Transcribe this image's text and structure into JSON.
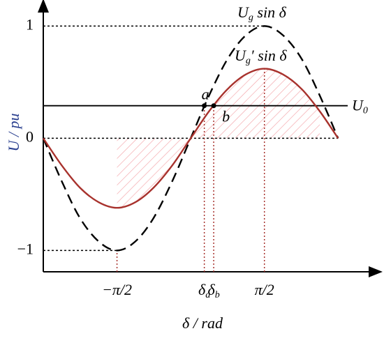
{
  "chart_data": {
    "type": "line",
    "x_label": "δ / rad",
    "y_label": "U / pu",
    "x": [
      -3.14,
      -2.75,
      -2.36,
      -1.96,
      -1.57,
      -1.18,
      -0.79,
      -0.39,
      0,
      0.39,
      0.79,
      1.18,
      1.57,
      1.96,
      2.36,
      2.75,
      3.14
    ],
    "series": [
      {
        "name": "Ug sin δ",
        "color": "#000000",
        "dashed": true,
        "values": [
          0,
          -0.38,
          -0.71,
          -0.92,
          -1,
          -0.92,
          -0.71,
          -0.38,
          0,
          0.38,
          0.71,
          0.92,
          1,
          0.92,
          0.71,
          0.38,
          0
        ]
      },
      {
        "name": "Ug′ sin δ",
        "color": "#a8322d",
        "dashed": false,
        "values": [
          0,
          -0.24,
          -0.44,
          -0.57,
          -0.62,
          -0.57,
          -0.44,
          -0.24,
          0,
          0.24,
          0.44,
          0.57,
          0.62,
          0.57,
          0.44,
          0.24,
          0
        ]
      }
    ],
    "hline": {
      "name": "U0",
      "value": 0.29
    },
    "points": [
      {
        "label": "a",
        "x": 0.29,
        "y": 0.29
      },
      {
        "label": "b",
        "x": 0.49,
        "y": 0.29
      }
    ],
    "xlim": [
      -3.14,
      3.82
    ],
    "ylim": [
      -1.19,
      1.17
    ],
    "xticks": [
      {
        "value": -1.57,
        "label": "−π/2"
      },
      {
        "value": 0.29,
        "label": "δa"
      },
      {
        "value": 0.49,
        "label": "δb"
      },
      {
        "value": 1.57,
        "label": "π/2"
      }
    ],
    "yticks": [
      {
        "value": -1,
        "label": "−1"
      },
      0,
      1
    ]
  }
}
